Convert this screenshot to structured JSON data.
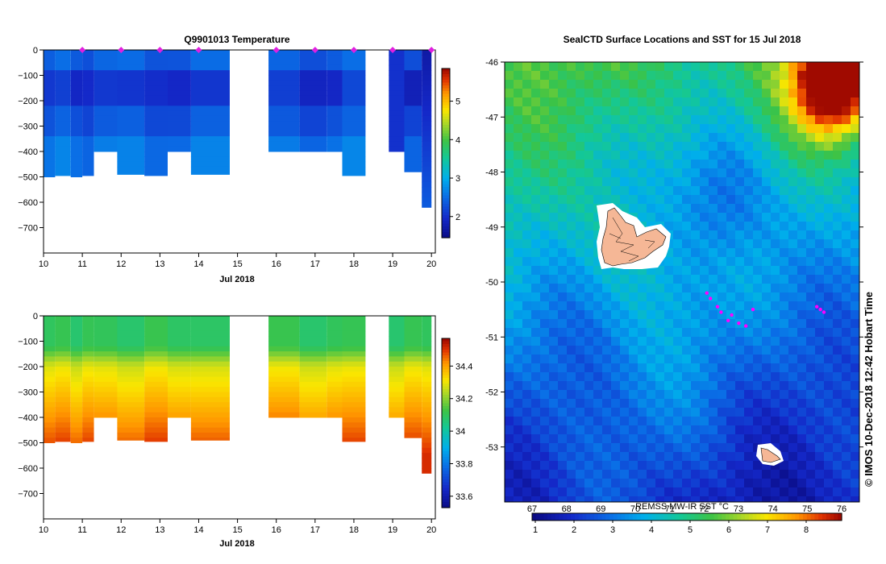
{
  "chart_data": [
    {
      "type": "heatmap",
      "title": "Q9901013  Temperature",
      "xlabel": "Jul 2018",
      "x_ticks": [
        10,
        11,
        12,
        13,
        14,
        15,
        16,
        17,
        18,
        19,
        20
      ],
      "xlim": [
        10,
        20.1
      ],
      "ylim": [
        -800,
        0
      ],
      "y_ticks": [
        0,
        -100,
        -200,
        -300,
        -400,
        -500,
        -600,
        -700
      ],
      "y_tick_labels": [
        "0",
        "−100",
        "−200",
        "−300",
        "−400",
        "−500",
        "−600",
        "−700"
      ],
      "colorbar": {
        "min": 1.45,
        "max": 5.85,
        "ticks": [
          2,
          3,
          4,
          5
        ],
        "labels": [
          "2",
          "3",
          "4",
          "5"
        ],
        "palette": "temperature"
      },
      "profiles": [
        {
          "x0": 10.0,
          "x1": 10.3,
          "depth": 500
        },
        {
          "x0": 10.3,
          "x1": 10.7,
          "depth": 495
        },
        {
          "x0": 10.7,
          "x1": 11.0,
          "depth": 500
        },
        {
          "x0": 11.0,
          "x1": 11.3,
          "depth": 495
        },
        {
          "x0": 11.3,
          "x1": 11.9,
          "depth": 400
        },
        {
          "x0": 11.9,
          "x1": 12.6,
          "depth": 490
        },
        {
          "x0": 12.6,
          "x1": 13.2,
          "depth": 495
        },
        {
          "x0": 13.2,
          "x1": 13.8,
          "depth": 400
        },
        {
          "x0": 13.8,
          "x1": 14.8,
          "depth": 490
        },
        {
          "x0": 15.8,
          "x1": 16.6,
          "depth": 400
        },
        {
          "x0": 16.6,
          "x1": 17.3,
          "depth": 400
        },
        {
          "x0": 17.3,
          "x1": 17.7,
          "depth": 400
        },
        {
          "x0": 17.7,
          "x1": 18.3,
          "depth": 495
        },
        {
          "x0": 18.9,
          "x1": 19.3,
          "depth": 400
        },
        {
          "x0": 19.3,
          "x1": 19.75,
          "depth": 480
        },
        {
          "x0": 19.75,
          "x1": 20.0,
          "depth": 620
        }
      ],
      "surface_markers": [
        11.0,
        12.0,
        13.0,
        14.0,
        16.0,
        17.0,
        18.0,
        19.0,
        20.0
      ]
    },
    {
      "type": "heatmap",
      "title": "",
      "xlabel": "Jul 2018",
      "x_ticks": [
        10,
        11,
        12,
        13,
        14,
        15,
        16,
        17,
        18,
        19,
        20
      ],
      "xlim": [
        10,
        20.1
      ],
      "ylim": [
        -800,
        0
      ],
      "y_ticks": [
        0,
        -100,
        -200,
        -300,
        -400,
        -500,
        -600,
        -700
      ],
      "y_tick_labels": [
        "0",
        "−100",
        "−200",
        "−300",
        "−400",
        "−500",
        "−600",
        "−700"
      ],
      "colorbar": {
        "min": 33.53,
        "max": 34.57,
        "ticks": [
          33.6,
          33.8,
          34,
          34.2,
          34.4
        ],
        "labels": [
          "33.6",
          "33.8",
          "34",
          "34.2",
          "34.4"
        ],
        "palette": "salinity"
      },
      "profiles": [
        {
          "x0": 10.0,
          "x1": 10.3,
          "depth": 500
        },
        {
          "x0": 10.3,
          "x1": 10.7,
          "depth": 495
        },
        {
          "x0": 10.7,
          "x1": 11.0,
          "depth": 500
        },
        {
          "x0": 11.0,
          "x1": 11.3,
          "depth": 495
        },
        {
          "x0": 11.3,
          "x1": 11.9,
          "depth": 400
        },
        {
          "x0": 11.9,
          "x1": 12.6,
          "depth": 490
        },
        {
          "x0": 12.6,
          "x1": 13.2,
          "depth": 495
        },
        {
          "x0": 13.2,
          "x1": 13.8,
          "depth": 400
        },
        {
          "x0": 13.8,
          "x1": 14.8,
          "depth": 490
        },
        {
          "x0": 15.8,
          "x1": 16.6,
          "depth": 400
        },
        {
          "x0": 16.6,
          "x1": 17.3,
          "depth": 400
        },
        {
          "x0": 17.3,
          "x1": 17.7,
          "depth": 400
        },
        {
          "x0": 17.7,
          "x1": 18.3,
          "depth": 495
        },
        {
          "x0": 18.9,
          "x1": 19.3,
          "depth": 400
        },
        {
          "x0": 19.3,
          "x1": 19.75,
          "depth": 480
        },
        {
          "x0": 19.75,
          "x1": 20.0,
          "depth": 620
        }
      ]
    },
    {
      "type": "heatmap",
      "title": "SealCTD Surface Locations and SST for 15 Jul 2018",
      "ylim": [
        -54,
        -46
      ],
      "y_ticks": [
        -46,
        -47,
        -48,
        -49,
        -50,
        -51,
        -52,
        -53
      ],
      "y_tick_labels": [
        "-46",
        "-47",
        "-48",
        "-49",
        "-50",
        "-51",
        "-52",
        "-53"
      ],
      "colorbar_label": "REMSS MW-IR SST °C",
      "colorbar_upper_labels": [
        "67",
        "68",
        "69",
        "70",
        "71",
        "72",
        "73",
        "74",
        "75",
        "76"
      ],
      "colorbar_ticks": [
        "1",
        "2",
        "3",
        "4",
        "5",
        "6",
        "7",
        "8"
      ],
      "side_label": "© IMOS 10-Dec-2018 12:42 Hobart Time",
      "islands": [
        "Kerguelen",
        "Heard"
      ],
      "seal_positions": [
        {
          "lon_frac": 0.57,
          "lat": -50.2
        },
        {
          "lon_frac": 0.58,
          "lat": -50.3
        },
        {
          "lon_frac": 0.6,
          "lat": -50.45
        },
        {
          "lon_frac": 0.61,
          "lat": -50.55
        },
        {
          "lon_frac": 0.63,
          "lat": -50.7
        },
        {
          "lon_frac": 0.64,
          "lat": -50.6
        },
        {
          "lon_frac": 0.66,
          "lat": -50.75
        },
        {
          "lon_frac": 0.68,
          "lat": -50.8
        },
        {
          "lon_frac": 0.7,
          "lat": -50.5
        },
        {
          "lon_frac": 0.88,
          "lat": -50.45
        },
        {
          "lon_frac": 0.89,
          "lat": -50.5
        },
        {
          "lon_frac": 0.9,
          "lat": -50.55
        }
      ]
    }
  ]
}
